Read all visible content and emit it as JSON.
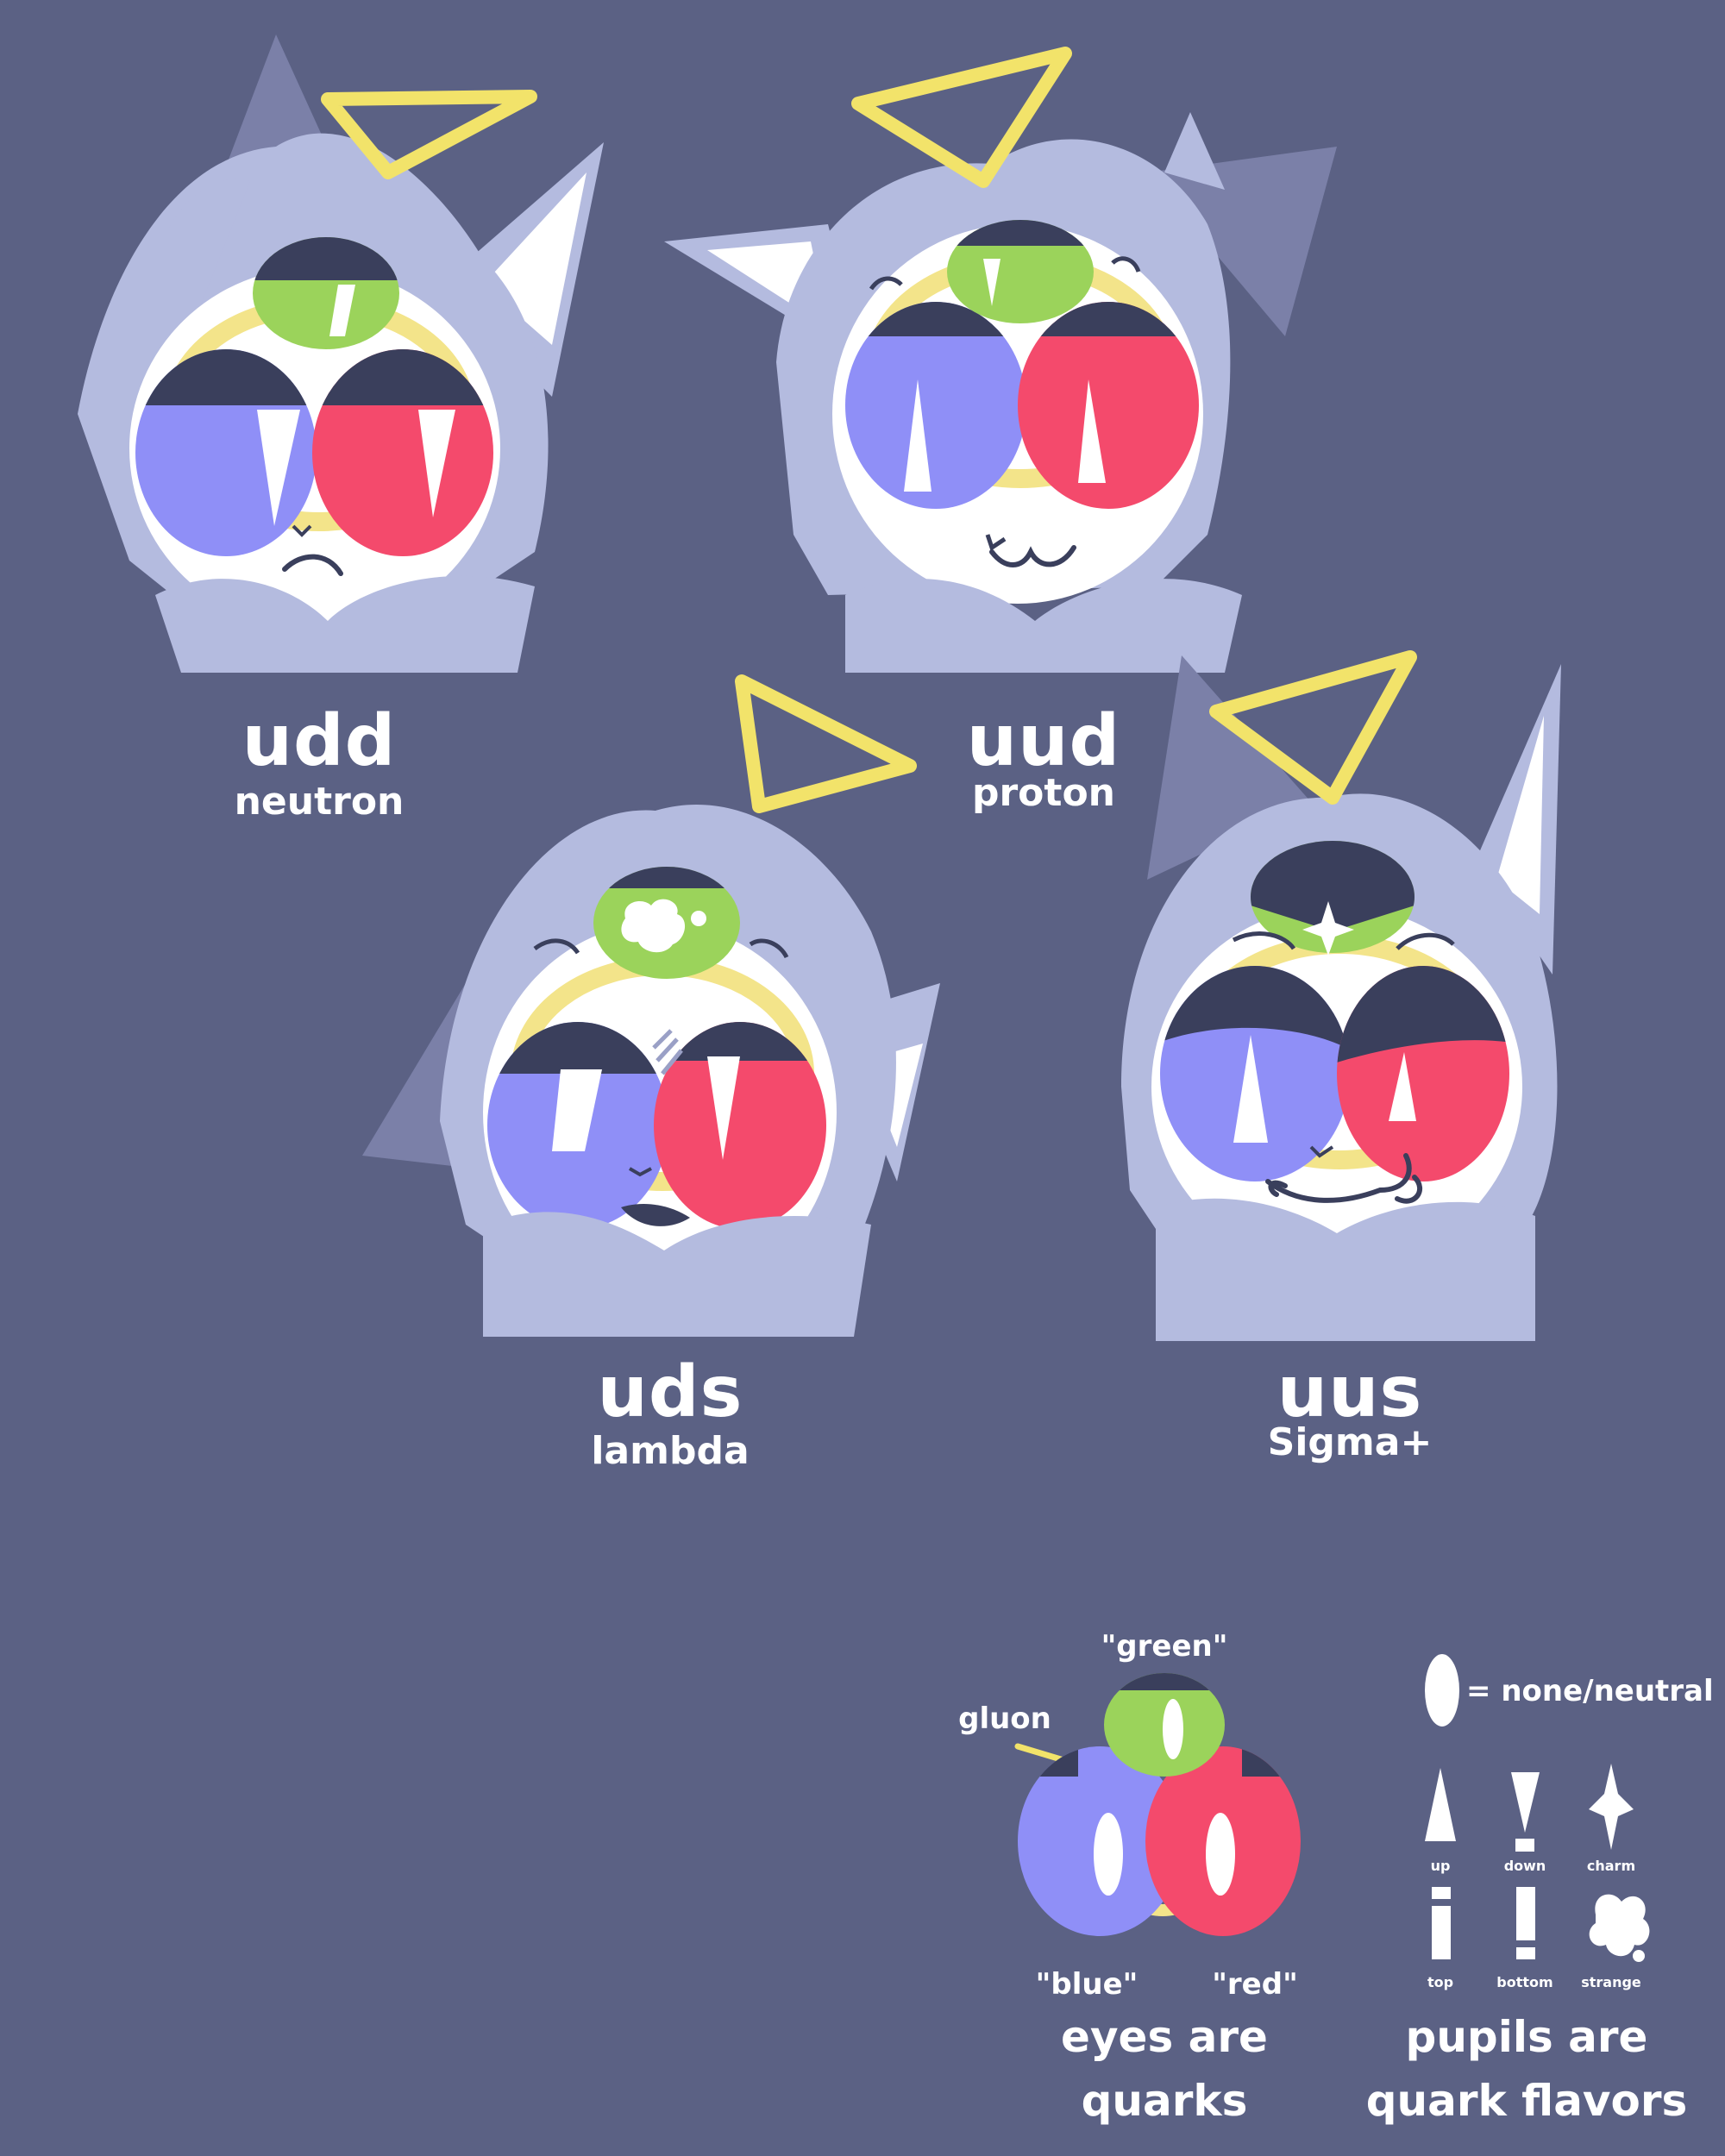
{
  "colors": {
    "background": "#5b6184",
    "hair": "#b4bbdf",
    "hair_shadow": "#7b80a8",
    "ear_inner": "#ffffff",
    "face": "#ffffff",
    "lid": "#3a3f5c",
    "blue_quark": "#8f8ff7",
    "red_quark": "#f44a6c",
    "green_quark": "#9bd35b",
    "gluon_ring": "#f3e48a",
    "halo": "#f2e36a",
    "text": "#ffffff"
  },
  "characters": [
    {
      "code": "udd",
      "name": "neutron"
    },
    {
      "code": "uud",
      "name": "proton"
    },
    {
      "code": "uds",
      "name": "lambda"
    },
    {
      "code": "uus",
      "name": "Sigma+"
    }
  ],
  "legend": {
    "eyes": {
      "green_label": "\"green\"",
      "gluon_label": "gluon",
      "blue_label": "\"blue\"",
      "red_label": "\"red\"",
      "caption_line1": "eyes are",
      "caption_line2": "quarks"
    },
    "pupils": {
      "neutral_label": "= none/neutral",
      "up": "up",
      "down": "down",
      "charm": "charm",
      "top": "top",
      "bottom": "bottom",
      "strange": "strange",
      "caption_line1": "pupils are",
      "caption_line2": "quark flavors"
    }
  }
}
